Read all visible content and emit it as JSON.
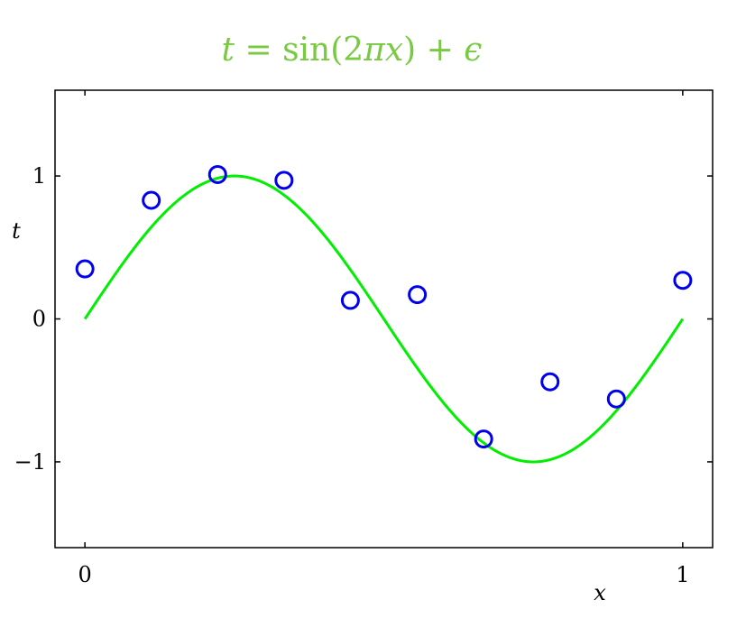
{
  "chart_data": {
    "type": "scatter",
    "title": {
      "lhs": "t",
      "eq": " = ",
      "func": "sin(2",
      "pi": "π",
      "x": "x",
      "close": ") + ",
      "eps": "ϵ"
    },
    "xlabel": "x",
    "ylabel": "t",
    "xlim": [
      -0.05,
      1.05
    ],
    "ylim": [
      -1.6,
      1.6
    ],
    "x_ticks": [
      0,
      1
    ],
    "x_tick_labels": [
      "0",
      "1"
    ],
    "y_ticks": [
      -1,
      0,
      1
    ],
    "y_tick_labels": [
      "−1",
      "0",
      "1"
    ],
    "grid": false,
    "colors": {
      "title": "#7ac943",
      "curve": "#00ee00",
      "points": "#0000ee",
      "axes": "#000000"
    },
    "curve": {
      "name": "sin(2πx)",
      "function": "sin(2*pi*x)",
      "x_range": [
        0,
        1
      ]
    },
    "series": [
      {
        "x": [
          0.0,
          0.111,
          0.222,
          0.333,
          0.444,
          0.556,
          0.667,
          0.778,
          0.889,
          1.0
        ],
        "y": [
          0.35,
          0.83,
          1.01,
          0.97,
          0.13,
          0.17,
          -0.84,
          -0.44,
          -0.56,
          0.27
        ]
      }
    ]
  }
}
